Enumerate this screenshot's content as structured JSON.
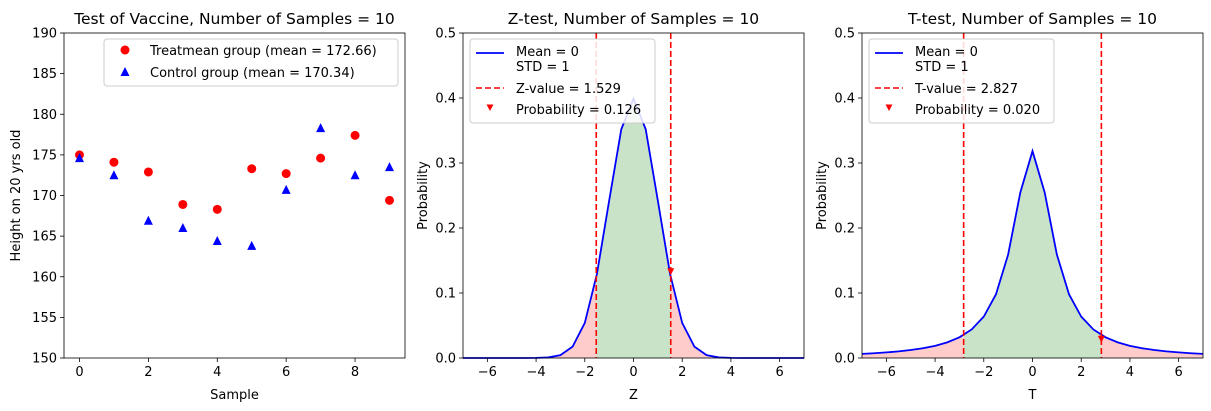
{
  "chart_data": [
    {
      "type": "scatter",
      "title": "Test of Vaccine, Number of Samples = 10",
      "xlabel": "Sample",
      "ylabel": "Height on 20 yrs old",
      "xlim": [
        -0.45,
        9.45
      ],
      "ylim": [
        150,
        190
      ],
      "xticks": [
        0,
        2,
        4,
        6,
        8
      ],
      "yticks": [
        150,
        155,
        160,
        165,
        170,
        175,
        180,
        185,
        190
      ],
      "legend_position": "top-right",
      "series": [
        {
          "name": "Treatmean group (mean = 172.66)",
          "marker": "circle",
          "color": "#ff0000",
          "x": [
            0,
            1,
            2,
            3,
            4,
            5,
            6,
            7,
            8,
            9
          ],
          "y": [
            175.0,
            174.1,
            172.9,
            168.9,
            168.3,
            173.3,
            172.7,
            174.6,
            177.4,
            169.4
          ]
        },
        {
          "name": "Control group (mean = 170.34)",
          "marker": "triangle-up",
          "color": "#0000ff",
          "x": [
            0,
            1,
            2,
            3,
            4,
            5,
            6,
            7,
            8,
            9
          ],
          "y": [
            174.6,
            172.5,
            166.9,
            166.0,
            164.4,
            163.8,
            170.7,
            178.3,
            172.5,
            173.5
          ]
        }
      ]
    },
    {
      "type": "line",
      "distribution": "normal",
      "title": "Z-test, Number of Samples = 10",
      "xlabel": "Z",
      "ylabel": "Probability",
      "xlim": [
        -7,
        7
      ],
      "ylim": [
        0,
        0.5
      ],
      "xticks": [
        -6,
        -4,
        -2,
        0,
        2,
        4,
        6
      ],
      "yticks": [
        0.0,
        0.1,
        0.2,
        0.3,
        0.4,
        0.5
      ],
      "legend_position": "top-left",
      "curve": {
        "name": "Mean = 0\nSTD = 1",
        "color": "#0000ff",
        "mean": 0,
        "std": 1
      },
      "critical_line": {
        "name": "Z-value = 1.529",
        "value": 1.529,
        "color": "#ff0000"
      },
      "probability_marker": {
        "name": "Probability = 0.126",
        "x": 1.529,
        "y": 0.132,
        "color": "#ff0000"
      },
      "shading": {
        "center_color": "#c9e3c8",
        "tail_color": "#ffcccc"
      },
      "grid": false
    },
    {
      "type": "line",
      "distribution": "student-t",
      "title": "T-test, Number of Samples = 10",
      "xlabel": "T",
      "ylabel": "Probability",
      "xlim": [
        -7,
        7
      ],
      "ylim": [
        0,
        0.5
      ],
      "xticks": [
        -6,
        -4,
        -2,
        0,
        2,
        4,
        6
      ],
      "yticks": [
        0.0,
        0.1,
        0.2,
        0.3,
        0.4,
        0.5
      ],
      "legend_position": "top-left",
      "curve": {
        "name": "Mean = 0\nSTD = 1",
        "color": "#0000ff",
        "df": 1,
        "peak": 0.318
      },
      "critical_line": {
        "name": "T-value = 2.827",
        "value": 2.827,
        "color": "#ff0000"
      },
      "probability_marker": {
        "name": "Probability = 0.020",
        "x": 2.827,
        "y": 0.028,
        "color": "#ff0000"
      },
      "shading": {
        "center_color": "#c9e3c8",
        "tail_color": "#ffcccc"
      },
      "grid": false
    }
  ]
}
